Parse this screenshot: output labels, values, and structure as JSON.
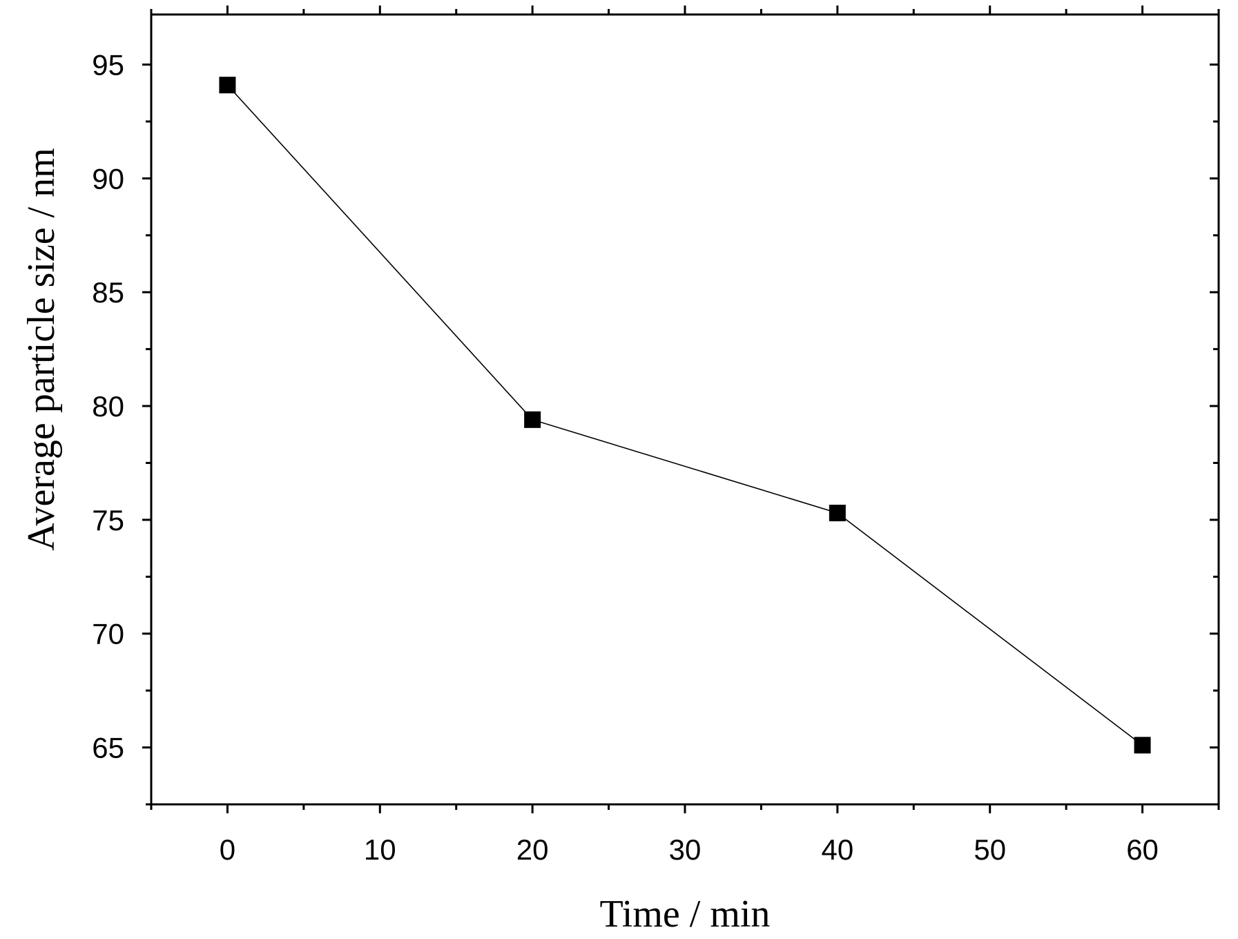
{
  "chart_data": {
    "type": "line",
    "title": "",
    "xlabel": "Time / min",
    "ylabel": "Average particle size / nm",
    "xlim": [
      -5,
      65
    ],
    "ylim": [
      62.5,
      97.2
    ],
    "x_ticks": [
      0,
      10,
      20,
      30,
      40,
      50,
      60
    ],
    "x_tick_labels": [
      "0",
      "10",
      "20",
      "30",
      "40",
      "50",
      "60"
    ],
    "y_ticks": [
      65,
      70,
      75,
      80,
      85,
      90,
      95
    ],
    "y_tick_labels": [
      "65",
      "70",
      "75",
      "80",
      "85",
      "90",
      "95"
    ],
    "grid": false,
    "legend": false,
    "series": [
      {
        "marker": "square",
        "color": "#000000",
        "x": [
          0,
          20,
          40,
          60
        ],
        "y": [
          94.1,
          79.4,
          75.3,
          65.1
        ]
      }
    ]
  }
}
